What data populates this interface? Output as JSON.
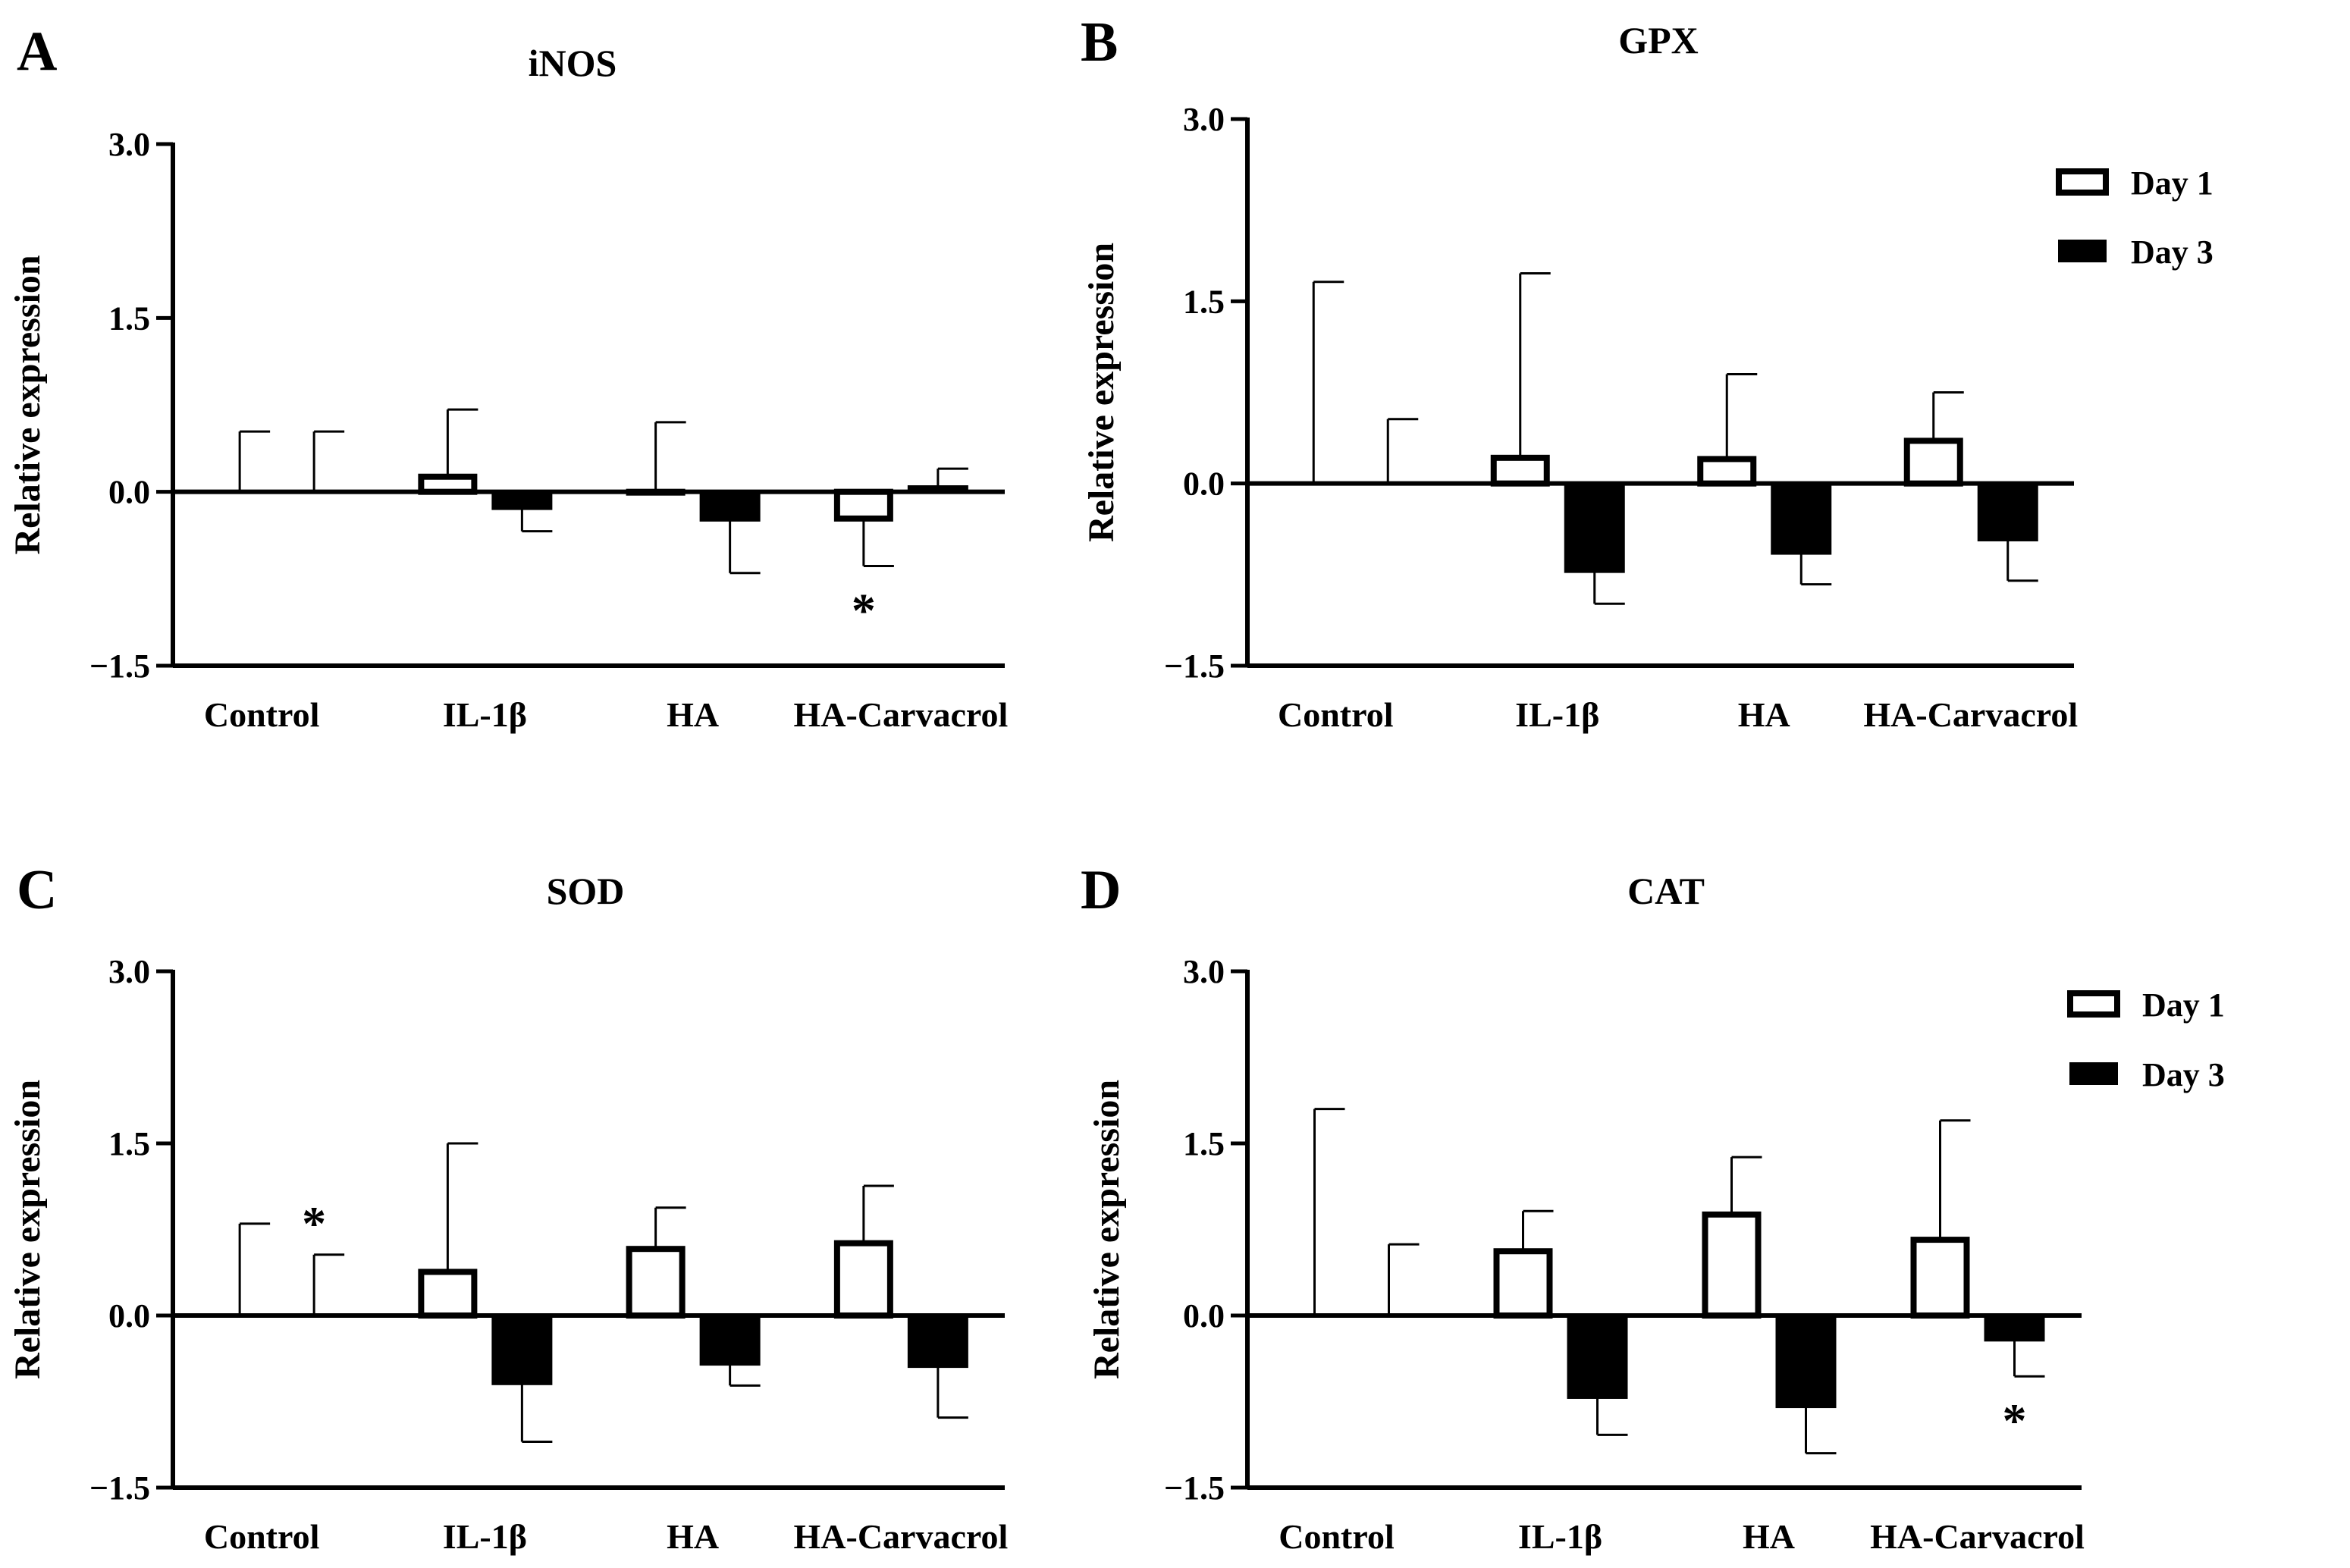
{
  "legend": {
    "series": [
      {
        "name": "Day 1",
        "fill": "#ffffff"
      },
      {
        "name": "Day 3",
        "fill": "#000000"
      }
    ]
  },
  "chart_data": [
    {
      "panel": "A",
      "type": "bar",
      "title": "iNOS",
      "ylabel": "Relative expression",
      "ylim": [
        -1.5,
        3.0
      ],
      "yticks": [
        "3.0",
        "1.5",
        "0.0",
        "−1.5"
      ],
      "categories": [
        "Control",
        "IL-1β",
        "HA",
        "HA-Carvacrol"
      ],
      "series": [
        {
          "name": "Day 1",
          "values": [
            0.0,
            0.15,
            -0.02,
            -0.25
          ],
          "error_ends": [
            0.52,
            0.71,
            0.6,
            -0.64
          ]
        },
        {
          "name": "Day 3",
          "values": [
            0.0,
            -0.15,
            -0.25,
            0.05
          ],
          "error_ends": [
            0.52,
            -0.34,
            -0.7,
            0.2
          ]
        }
      ],
      "significance": [
        {
          "category": "HA-Carvacrol",
          "series": "Day 1",
          "mark": "*"
        }
      ]
    },
    {
      "panel": "B",
      "type": "bar",
      "title": "GPX",
      "ylabel": "Relative expression",
      "ylim": [
        -1.5,
        3.0
      ],
      "yticks": [
        "3.0",
        "1.5",
        "0.0",
        "−1.5"
      ],
      "categories": [
        "Control",
        "IL-1β",
        "HA",
        "HA-Carvacrol"
      ],
      "series": [
        {
          "name": "Day 1",
          "values": [
            0.0,
            0.23,
            0.22,
            0.37
          ],
          "error_ends": [
            1.66,
            1.73,
            0.9,
            0.75
          ]
        },
        {
          "name": "Day 3",
          "values": [
            0.0,
            -0.73,
            -0.58,
            -0.47
          ],
          "error_ends": [
            0.53,
            -0.99,
            -0.83,
            -0.8
          ]
        }
      ],
      "significance": []
    },
    {
      "panel": "C",
      "type": "bar",
      "title": "SOD",
      "ylabel": "Relative expression",
      "ylim": [
        -1.5,
        3.0
      ],
      "yticks": [
        "3.0",
        "1.5",
        "0.0",
        "−1.5"
      ],
      "categories": [
        "Control",
        "IL-1β",
        "HA",
        "HA-Carvacrol"
      ],
      "series": [
        {
          "name": "Day 1",
          "values": [
            0.0,
            0.4,
            0.6,
            0.65
          ],
          "error_ends": [
            0.8,
            1.5,
            0.94,
            1.13
          ]
        },
        {
          "name": "Day 3",
          "values": [
            0.0,
            -0.6,
            -0.43,
            -0.45
          ],
          "error_ends": [
            0.53,
            -1.1,
            -0.61,
            -0.89
          ]
        }
      ],
      "significance": [
        {
          "category": "Control",
          "series": "Day 3",
          "mark": "*"
        }
      ]
    },
    {
      "panel": "D",
      "type": "bar",
      "title": "CAT",
      "ylabel": "Relative expression",
      "ylim": [
        -1.5,
        3.0
      ],
      "yticks": [
        "3.0",
        "1.5",
        "0.0",
        "−1.5"
      ],
      "categories": [
        "Control",
        "IL-1β",
        "HA",
        "HA-Carvacrol"
      ],
      "series": [
        {
          "name": "Day 1",
          "values": [
            0.0,
            0.58,
            0.9,
            0.68
          ],
          "error_ends": [
            1.8,
            0.91,
            1.38,
            1.7
          ]
        },
        {
          "name": "Day 3",
          "values": [
            0.0,
            -0.72,
            -0.8,
            -0.22
          ],
          "error_ends": [
            0.62,
            -1.04,
            -1.2,
            -0.53
          ]
        }
      ],
      "significance": [
        {
          "category": "HA-Carvacrol",
          "series": "Day 3",
          "mark": "*"
        }
      ]
    }
  ]
}
